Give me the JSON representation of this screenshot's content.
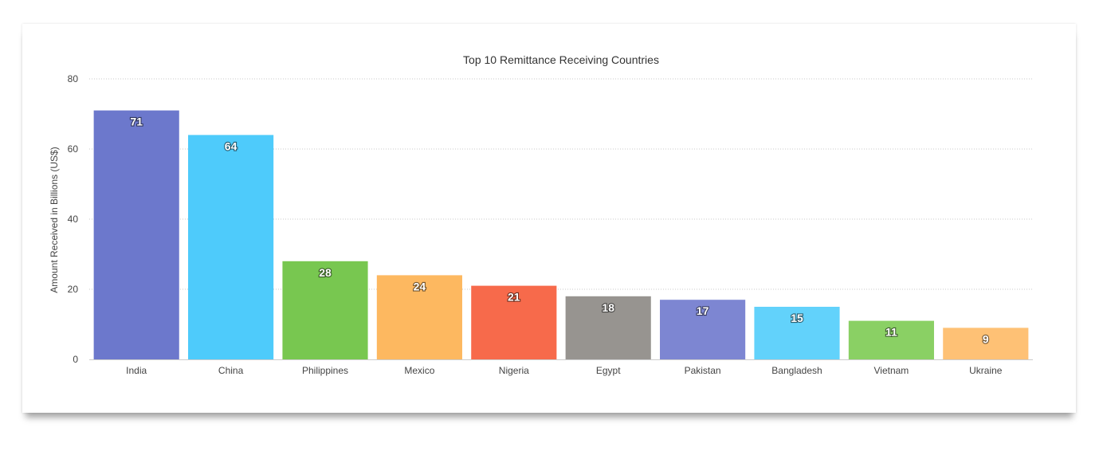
{
  "chart_data": {
    "type": "bar",
    "title": "Top 10 Remittance Receiving Countries",
    "xlabel": "",
    "ylabel": "Amount Received in Billions (US$)",
    "ylim": [
      0,
      80
    ],
    "yticks": [
      0,
      20,
      40,
      60,
      80
    ],
    "grid": true,
    "legend": "none",
    "categories": [
      "India",
      "China",
      "Philippines",
      "Mexico",
      "Nigeria",
      "Egypt",
      "Pakistan",
      "Bangladesh",
      "Vietnam",
      "Ukraine"
    ],
    "values": [
      71,
      64,
      28,
      24,
      21,
      18,
      17,
      15,
      11,
      9
    ],
    "colors": [
      "#6c78cc",
      "#4ecbfb",
      "#78c750",
      "#fdb860",
      "#f76a4b",
      "#979490",
      "#7d86d2",
      "#62d2fb",
      "#8ad064",
      "#fec175"
    ]
  }
}
